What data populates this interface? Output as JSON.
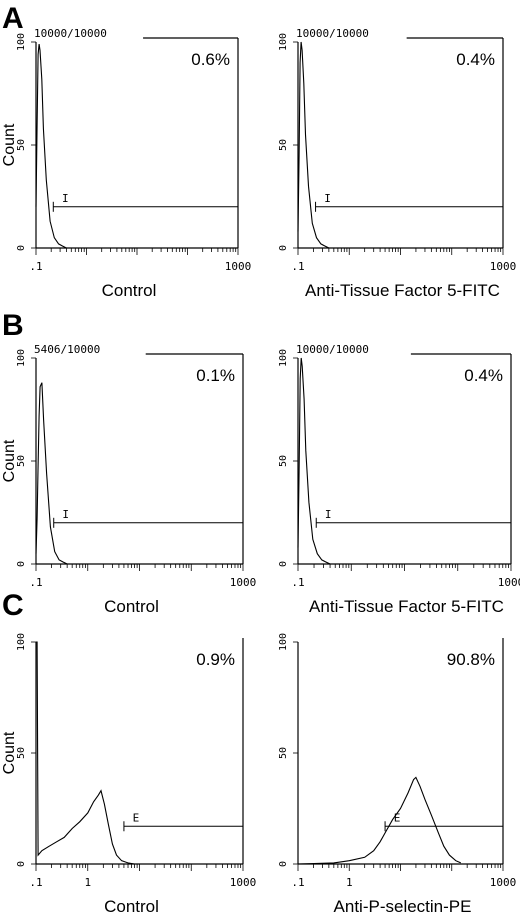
{
  "chart_data": [
    {
      "type": "histogram",
      "panel": "A",
      "position": "left",
      "event_count": "10000/10000",
      "percent_label": "0.6%",
      "xlabel": "Control",
      "ylabel": "Count",
      "gate_label": "I",
      "xscale": "log",
      "xlim": [
        0.1,
        1000
      ],
      "ylim": [
        0,
        100
      ],
      "x_tick_labels": [
        ".1",
        "1000"
      ],
      "y_tick_labels": [
        "100",
        "50",
        "0"
      ],
      "gate_range": [
        0.22,
        1000
      ],
      "peak_x": 0.12,
      "x": [
        0.1,
        0.105,
        0.11,
        0.115,
        0.12,
        0.13,
        0.14,
        0.16,
        0.19,
        0.23,
        0.28,
        0.33,
        0.4
      ],
      "y": [
        20,
        60,
        94,
        99,
        96,
        82,
        58,
        33,
        13,
        5,
        2,
        1,
        0
      ]
    },
    {
      "type": "histogram",
      "panel": "A",
      "position": "right",
      "event_count": "10000/10000",
      "percent_label": "0.4%",
      "xlabel": "Anti-Tissue Factor 5-FITC",
      "gate_label": "I",
      "xscale": "log",
      "xlim": [
        0.1,
        1000
      ],
      "ylim": [
        0,
        100
      ],
      "x_tick_labels": [
        ".1",
        "1000"
      ],
      "y_tick_labels": [
        "100",
        "50",
        "0"
      ],
      "gate_range": [
        0.22,
        1000
      ],
      "peak_x": 0.12,
      "x": [
        0.1,
        0.105,
        0.11,
        0.115,
        0.12,
        0.13,
        0.14,
        0.16,
        0.19,
        0.23,
        0.28,
        0.33,
        0.4
      ],
      "y": [
        8,
        45,
        90,
        100,
        96,
        80,
        55,
        30,
        12,
        5,
        2,
        1,
        0
      ]
    },
    {
      "type": "histogram",
      "panel": "B",
      "position": "left",
      "event_count": "5406/10000",
      "percent_label": "0.1%",
      "xlabel": "Control",
      "ylabel": "Count",
      "gate_label": "I",
      "xscale": "log",
      "xlim": [
        0.1,
        1000
      ],
      "ylim": [
        0,
        100
      ],
      "x_tick_labels": [
        ".1",
        "1000"
      ],
      "y_tick_labels": [
        "100",
        "50",
        "0"
      ],
      "gate_range": [
        0.22,
        1000
      ],
      "peak_x": 0.13,
      "x": [
        0.1,
        0.105,
        0.11,
        0.115,
        0.12,
        0.13,
        0.14,
        0.16,
        0.19,
        0.23,
        0.28,
        0.33,
        0.4
      ],
      "y": [
        5,
        22,
        48,
        72,
        86,
        88,
        70,
        44,
        18,
        6,
        2,
        1,
        0
      ]
    },
    {
      "type": "histogram",
      "panel": "B",
      "position": "right",
      "event_count": "10000/10000",
      "percent_label": "0.4%",
      "xlabel": "Anti-Tissue Factor 5-FITC",
      "gate_label": "I",
      "xscale": "log",
      "xlim": [
        0.1,
        1000
      ],
      "ylim": [
        0,
        100
      ],
      "x_tick_labels": [
        ".1",
        "1000"
      ],
      "y_tick_labels": [
        "100",
        "50",
        "0"
      ],
      "gate_range": [
        0.22,
        1000
      ],
      "peak_x": 0.12,
      "x": [
        0.1,
        0.105,
        0.11,
        0.115,
        0.12,
        0.13,
        0.14,
        0.16,
        0.19,
        0.23,
        0.28,
        0.33,
        0.4
      ],
      "y": [
        8,
        45,
        90,
        100,
        96,
        80,
        55,
        30,
        12,
        5,
        2,
        1,
        0
      ]
    },
    {
      "type": "histogram",
      "panel": "C",
      "position": "left",
      "percent_label": "0.9%",
      "xlabel": "Control",
      "ylabel": "Count",
      "gate_label": "E",
      "xscale": "log",
      "xlim": [
        0.1,
        1000
      ],
      "ylim": [
        0,
        100
      ],
      "x_tick_labels": [
        ".1",
        "1",
        "1000"
      ],
      "y_tick_labels": [
        "100",
        "50",
        "0"
      ],
      "gate_range": [
        5,
        1000
      ],
      "peak_x": 1.8,
      "x": [
        0.1,
        0.105,
        0.11,
        0.13,
        0.18,
        0.25,
        0.35,
        0.5,
        0.7,
        1.0,
        1.3,
        1.6,
        1.8,
        2.1,
        2.5,
        3.0,
        3.6,
        4.5,
        6,
        8
      ],
      "y": [
        100,
        100,
        4,
        6,
        8,
        10,
        12,
        16,
        19,
        23,
        28,
        31,
        33,
        27,
        18,
        9,
        4,
        1.5,
        0.5,
        0
      ]
    },
    {
      "type": "histogram",
      "panel": "C",
      "position": "right",
      "percent_label": "90.8%",
      "xlabel": "Anti-P-selectin-PE",
      "gate_label": "E",
      "xscale": "log",
      "xlim": [
        0.1,
        1000
      ],
      "ylim": [
        0,
        100
      ],
      "x_tick_labels": [
        ".1",
        "1",
        "1000"
      ],
      "y_tick_labels": [
        "100",
        "50",
        "0"
      ],
      "gate_range": [
        5,
        1000
      ],
      "peak_x": 20,
      "x": [
        0.1,
        0.5,
        1.0,
        2,
        3,
        4,
        5,
        7,
        10,
        14,
        18,
        20,
        24,
        30,
        40,
        55,
        70,
        90,
        120,
        150
      ],
      "y": [
        0,
        0.5,
        1.5,
        3,
        6,
        10,
        14,
        20,
        25,
        32,
        38,
        39,
        35,
        29,
        22,
        14,
        8,
        4,
        1.5,
        0.5
      ]
    }
  ]
}
